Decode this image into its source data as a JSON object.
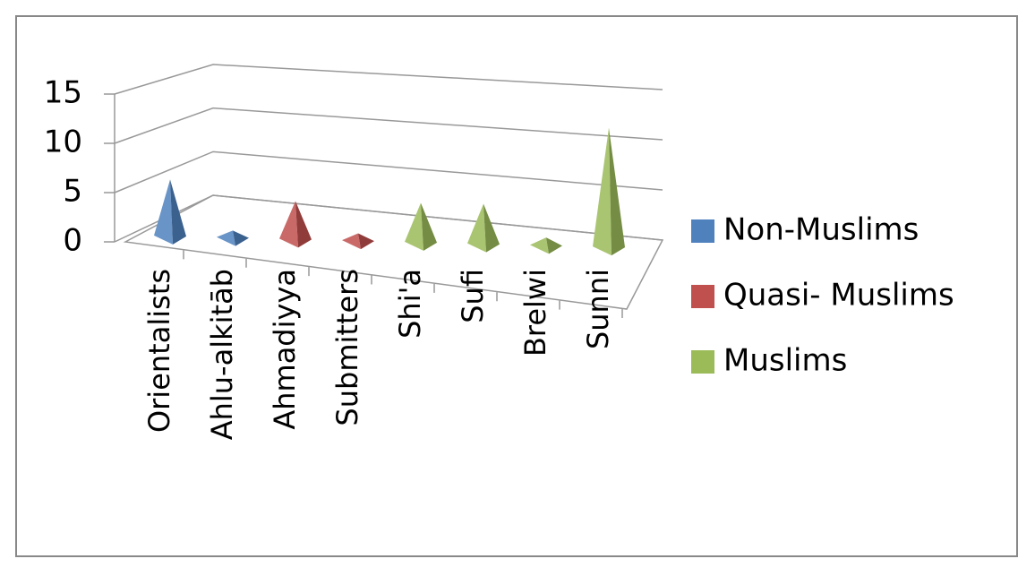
{
  "chart_data": {
    "type": "pyramid3d",
    "categories": [
      "Orientalists",
      "Ahlu-alkitāb",
      "Ahmadiyya",
      "Submitters",
      "Shi'a",
      "Sufi",
      "Brelwi",
      "Sunni"
    ],
    "series": [
      {
        "name": "Non-Muslims",
        "color": "#4f81bd",
        "values": [
          6,
          1,
          null,
          null,
          null,
          null,
          null,
          null
        ]
      },
      {
        "name": "Quasi- Muslims",
        "color": "#c0504d",
        "values": [
          null,
          null,
          4,
          1,
          null,
          null,
          null,
          null
        ]
      },
      {
        "name": "Muslims",
        "color": "#9bbb59",
        "values": [
          null,
          null,
          null,
          null,
          4,
          4,
          1,
          11
        ]
      }
    ],
    "ylim": [
      0,
      15
    ],
    "yticks": [
      0,
      5,
      10,
      15
    ],
    "grid": true,
    "legend": "right"
  }
}
